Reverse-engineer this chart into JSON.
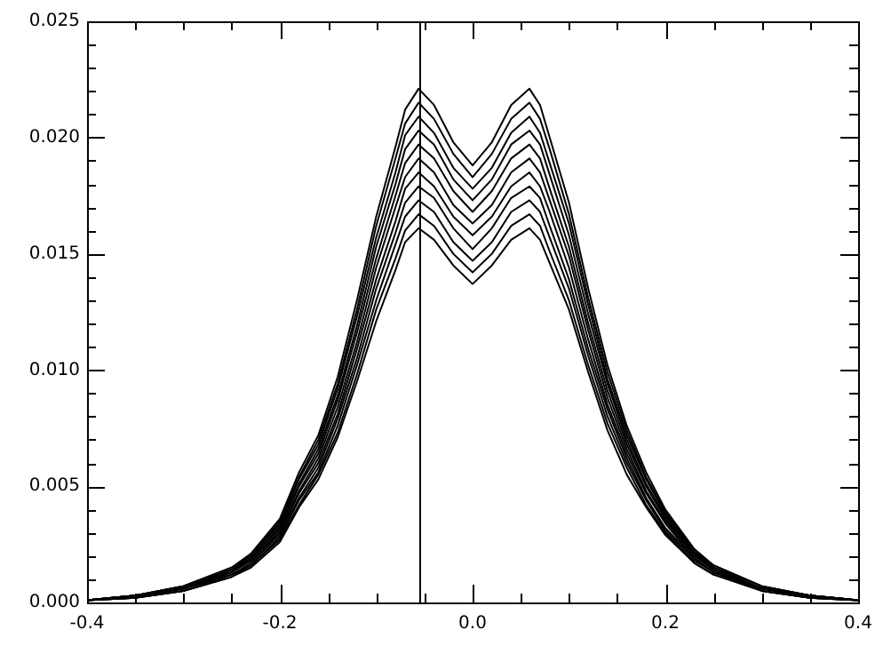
{
  "chart_data": {
    "type": "line",
    "x": [
      -0.4,
      -0.35,
      -0.3,
      -0.25,
      -0.23,
      -0.2,
      -0.18,
      -0.16,
      -0.14,
      -0.12,
      -0.1,
      -0.08,
      -0.07,
      -0.056,
      -0.04,
      -0.02,
      0,
      0.02,
      0.04,
      0.059,
      0.07,
      0.08,
      0.1,
      0.12,
      0.14,
      0.16,
      0.18,
      0.2,
      0.23,
      0.25,
      0.3,
      0.35,
      0.4
    ],
    "series": [
      {
        "color": "#000000",
        "values": [
          0.0001,
          0.0003,
          0.0007,
          0.0015,
          0.0021,
          0.0036,
          0.0056,
          0.0072,
          0.0097,
          0.013,
          0.0166,
          0.0196,
          0.0212,
          0.0221,
          0.0214,
          0.0198,
          0.0188,
          0.0198,
          0.0214,
          0.0221,
          0.0214,
          0.02,
          0.0172,
          0.0135,
          0.0102,
          0.0076,
          0.0056,
          0.004,
          0.0023,
          0.0016,
          0.0007,
          0.0003,
          0.0001
        ]
      },
      {
        "color": "#000000",
        "values": [
          0.0001,
          0.0003,
          0.0007,
          0.0015,
          0.002,
          0.0035,
          0.0054,
          0.007,
          0.0094,
          0.0126,
          0.0162,
          0.0191,
          0.0206,
          0.0215,
          0.0208,
          0.0193,
          0.0183,
          0.0193,
          0.0208,
          0.0215,
          0.0208,
          0.0195,
          0.0167,
          0.0131,
          0.0099,
          0.0074,
          0.0054,
          0.0039,
          0.0022,
          0.0016,
          0.0007,
          0.0003,
          0.0001
        ]
      },
      {
        "color": "#000000",
        "values": [
          0.0001,
          0.0003,
          0.0007,
          0.0014,
          0.002,
          0.0034,
          0.0053,
          0.0068,
          0.0092,
          0.0123,
          0.0157,
          0.0185,
          0.0201,
          0.0209,
          0.0202,
          0.0187,
          0.0178,
          0.0187,
          0.0202,
          0.0209,
          0.0202,
          0.0189,
          0.0163,
          0.0128,
          0.0096,
          0.0072,
          0.0053,
          0.0038,
          0.0022,
          0.0015,
          0.0007,
          0.0003,
          0.0001
        ]
      },
      {
        "color": "#000000",
        "values": [
          0.0001,
          0.0003,
          0.0006,
          0.0014,
          0.0019,
          0.0033,
          0.0051,
          0.0066,
          0.0089,
          0.0119,
          0.0153,
          0.018,
          0.0195,
          0.0203,
          0.0197,
          0.0182,
          0.0173,
          0.0182,
          0.0197,
          0.0203,
          0.0197,
          0.0184,
          0.0158,
          0.0124,
          0.0094,
          0.007,
          0.0051,
          0.0037,
          0.0021,
          0.0015,
          0.0006,
          0.0003,
          0.0001
        ]
      },
      {
        "color": "#000000",
        "values": [
          0.0001,
          0.0003,
          0.0006,
          0.0013,
          0.0019,
          0.0032,
          0.005,
          0.0064,
          0.0087,
          0.0116,
          0.0148,
          0.0175,
          0.0189,
          0.0197,
          0.0191,
          0.0177,
          0.0168,
          0.0177,
          0.0191,
          0.0197,
          0.0191,
          0.0178,
          0.0153,
          0.012,
          0.0091,
          0.0068,
          0.005,
          0.0036,
          0.0021,
          0.0014,
          0.0006,
          0.0003,
          0.0001
        ]
      },
      {
        "color": "#000000",
        "values": [
          0.0001,
          0.0003,
          0.0006,
          0.0013,
          0.0018,
          0.0031,
          0.0048,
          0.0062,
          0.0084,
          0.0112,
          0.0144,
          0.017,
          0.0183,
          0.0191,
          0.0185,
          0.0171,
          0.0163,
          0.0171,
          0.0185,
          0.0191,
          0.0185,
          0.0173,
          0.0149,
          0.0117,
          0.0088,
          0.0066,
          0.0048,
          0.0035,
          0.002,
          0.0014,
          0.0006,
          0.0003,
          0.0001
        ]
      },
      {
        "color": "#000000",
        "values": [
          0.0001,
          0.0003,
          0.0006,
          0.0013,
          0.0018,
          0.003,
          0.0047,
          0.006,
          0.0081,
          0.0109,
          0.0139,
          0.0164,
          0.0178,
          0.0185,
          0.0179,
          0.0166,
          0.0158,
          0.0166,
          0.0179,
          0.0185,
          0.0179,
          0.0168,
          0.0144,
          0.0113,
          0.0085,
          0.0064,
          0.0047,
          0.0034,
          0.0019,
          0.0013,
          0.0006,
          0.0003,
          0.0001
        ]
      },
      {
        "color": "#000000",
        "values": [
          0.0001,
          0.0002,
          0.0006,
          0.0012,
          0.0017,
          0.0029,
          0.0045,
          0.0058,
          0.0079,
          0.0105,
          0.0135,
          0.0159,
          0.0172,
          0.0179,
          0.0174,
          0.0161,
          0.0152,
          0.0161,
          0.0174,
          0.0179,
          0.0174,
          0.0162,
          0.0139,
          0.0109,
          0.0083,
          0.0062,
          0.0045,
          0.0032,
          0.0019,
          0.0013,
          0.0006,
          0.0002,
          0.0001
        ]
      },
      {
        "color": "#000000",
        "values": [
          0.0001,
          0.0002,
          0.0005,
          0.0012,
          0.0016,
          0.0028,
          0.0044,
          0.0056,
          0.0076,
          0.0102,
          0.013,
          0.0154,
          0.0166,
          0.0173,
          0.0168,
          0.0155,
          0.0147,
          0.0155,
          0.0168,
          0.0173,
          0.0168,
          0.0157,
          0.0135,
          0.0106,
          0.008,
          0.006,
          0.0044,
          0.0031,
          0.0018,
          0.0013,
          0.0005,
          0.0002,
          0.0001
        ]
      },
      {
        "color": "#000000",
        "values": [
          0.0001,
          0.0002,
          0.0005,
          0.0011,
          0.0016,
          0.0027,
          0.0042,
          0.0055,
          0.0073,
          0.0098,
          0.0126,
          0.0148,
          0.016,
          0.0167,
          0.0162,
          0.015,
          0.0142,
          0.015,
          0.0162,
          0.0167,
          0.0162,
          0.0151,
          0.013,
          0.0102,
          0.0077,
          0.0058,
          0.0042,
          0.003,
          0.0017,
          0.0012,
          0.0005,
          0.0002,
          0.0001
        ]
      },
      {
        "color": "#000000",
        "values": [
          0.0001,
          0.0002,
          0.0005,
          0.0011,
          0.0015,
          0.0026,
          0.0041,
          0.0053,
          0.0071,
          0.0095,
          0.0121,
          0.0143,
          0.0155,
          0.0161,
          0.0156,
          0.0145,
          0.0137,
          0.0145,
          0.0156,
          0.0161,
          0.0156,
          0.0146,
          0.0126,
          0.0099,
          0.0074,
          0.0055,
          0.0041,
          0.0029,
          0.0017,
          0.0012,
          0.0005,
          0.0002,
          0.0001
        ]
      }
    ],
    "xlim": [
      -0.4,
      0.4
    ],
    "ylim": [
      0,
      0.025
    ],
    "xticks": [
      {
        "value": -0.4,
        "label": "-0.4"
      },
      {
        "value": -0.35,
        "label": null
      },
      {
        "value": -0.3,
        "label": null
      },
      {
        "value": -0.25,
        "label": null
      },
      {
        "value": -0.2,
        "label": "-0.2"
      },
      {
        "value": -0.15,
        "label": null
      },
      {
        "value": -0.1,
        "label": null
      },
      {
        "value": -0.05,
        "label": null
      },
      {
        "value": 0,
        "label": "0.0"
      },
      {
        "value": 0.05,
        "label": null
      },
      {
        "value": 0.1,
        "label": null
      },
      {
        "value": 0.15,
        "label": null
      },
      {
        "value": 0.2,
        "label": "0.2"
      },
      {
        "value": 0.25,
        "label": null
      },
      {
        "value": 0.3,
        "label": null
      },
      {
        "value": 0.35,
        "label": null
      },
      {
        "value": 0.4,
        "label": "0.4"
      }
    ],
    "yticks": [
      {
        "value": 0,
        "label": "0.000"
      },
      {
        "value": 0.001,
        "label": null
      },
      {
        "value": 0.002,
        "label": null
      },
      {
        "value": 0.003,
        "label": null
      },
      {
        "value": 0.004,
        "label": null
      },
      {
        "value": 0.005,
        "label": "0.005"
      },
      {
        "value": 0.006,
        "label": null
      },
      {
        "value": 0.007,
        "label": null
      },
      {
        "value": 0.008,
        "label": null
      },
      {
        "value": 0.009,
        "label": null
      },
      {
        "value": 0.01,
        "label": "0.010"
      },
      {
        "value": 0.011,
        "label": null
      },
      {
        "value": 0.012,
        "label": null
      },
      {
        "value": 0.013,
        "label": null
      },
      {
        "value": 0.014,
        "label": null
      },
      {
        "value": 0.015,
        "label": "0.015"
      },
      {
        "value": 0.016,
        "label": null
      },
      {
        "value": 0.017,
        "label": null
      },
      {
        "value": 0.018,
        "label": null
      },
      {
        "value": 0.019,
        "label": null
      },
      {
        "value": 0.02,
        "label": "0.020"
      },
      {
        "value": 0.021,
        "label": null
      },
      {
        "value": 0.022,
        "label": null
      },
      {
        "value": 0.023,
        "label": null
      },
      {
        "value": 0.024,
        "label": null
      },
      {
        "value": 0.025,
        "label": "0.025"
      }
    ],
    "ref_lines": [
      {
        "axis": "x",
        "value": -0.056,
        "color": "#000000"
      }
    ],
    "grid": false,
    "legend": false,
    "marker": "none",
    "line_style": "solid"
  }
}
